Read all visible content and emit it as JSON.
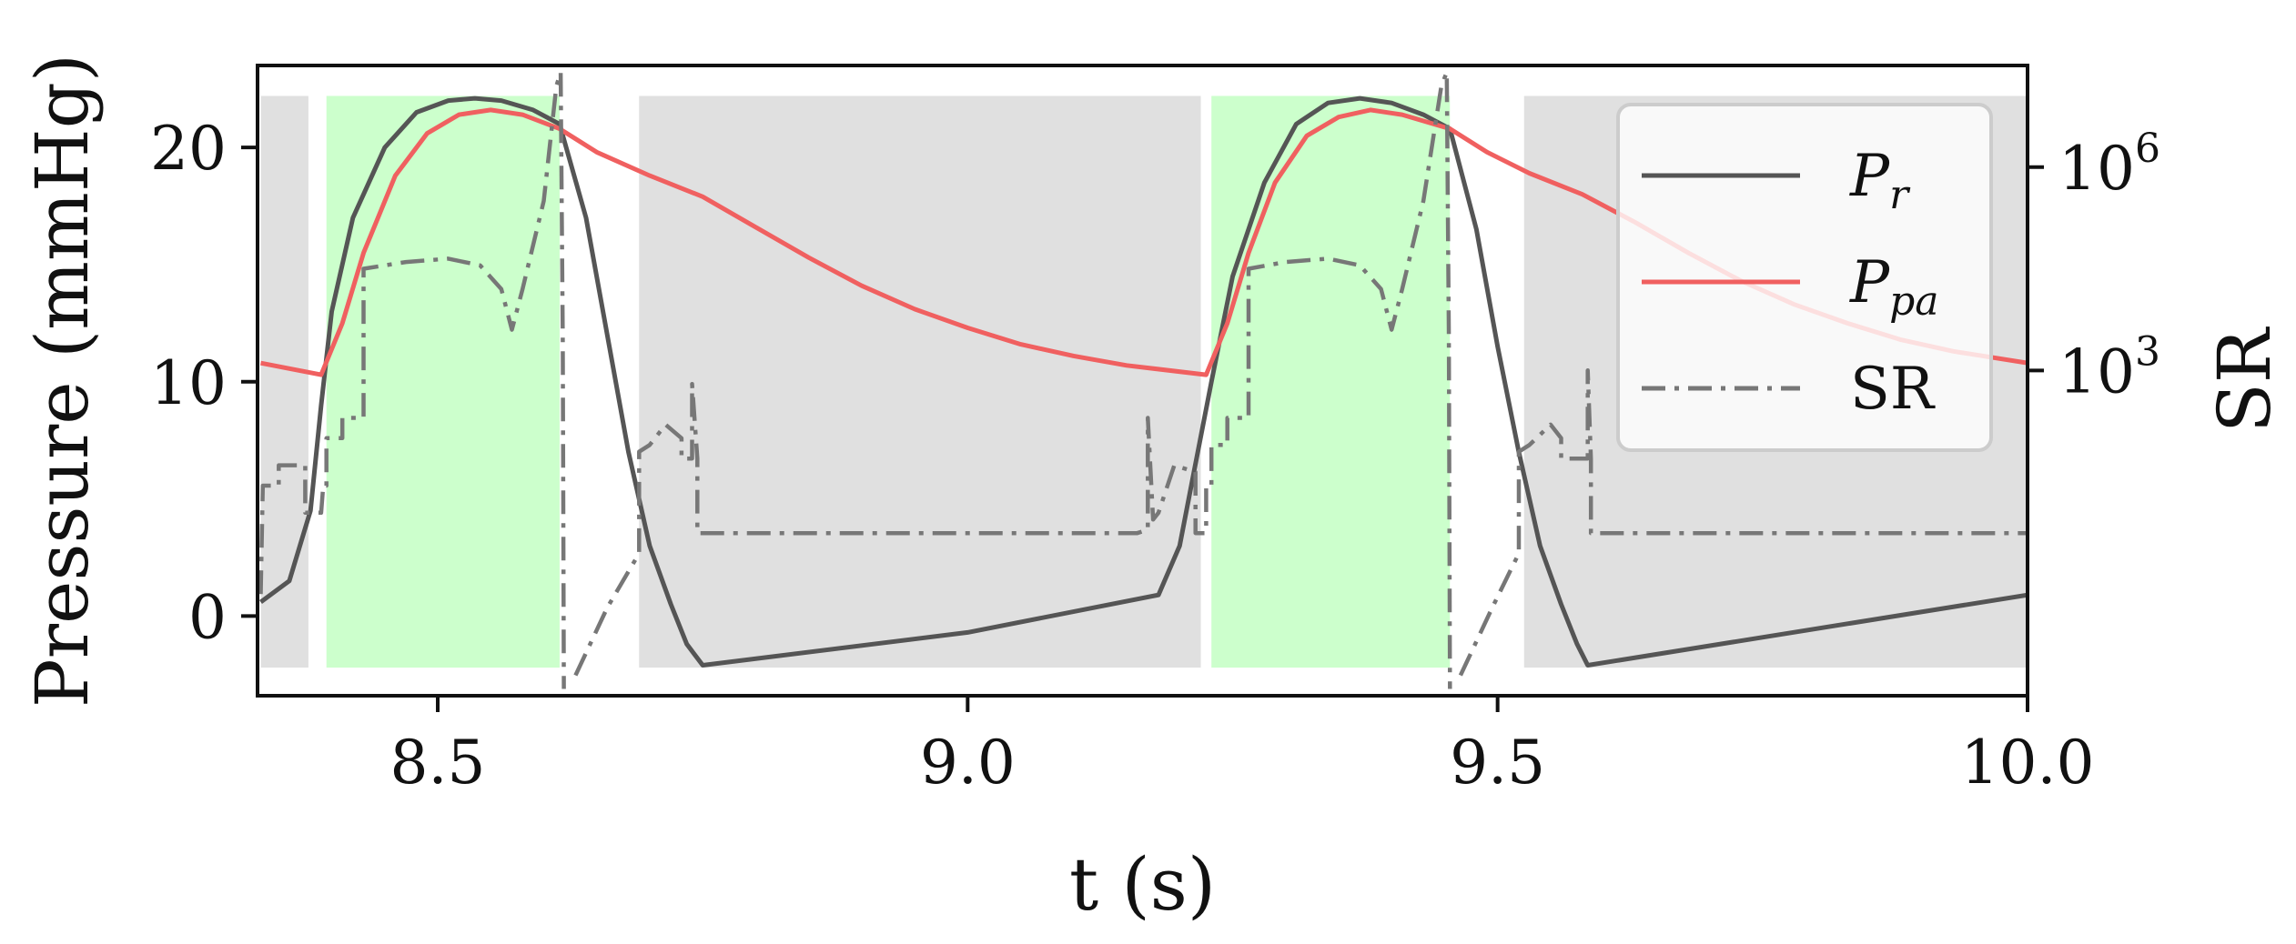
{
  "chart_data": {
    "type": "line",
    "xlabel": "t (s)",
    "ylabel": "Pressure (mmHg)",
    "y2label": "SR",
    "xlim": [
      8.33,
      10.0
    ],
    "ylim": [
      -3.4,
      23.5
    ],
    "y2scale": "log",
    "y2lim_exp": [
      -1.8,
      7.5
    ],
    "xticks": [
      {
        "v": 8.5,
        "label": "8.5"
      },
      {
        "v": 9.0,
        "label": "9.0"
      },
      {
        "v": 9.5,
        "label": "9.5"
      },
      {
        "v": 10.0,
        "label": "10.0"
      }
    ],
    "yticks": [
      {
        "v": 0,
        "label": "0"
      },
      {
        "v": 10,
        "label": "10"
      },
      {
        "v": 20,
        "label": "20"
      }
    ],
    "y2ticks": [
      {
        "e": 3,
        "base": "10",
        "exp": "3"
      },
      {
        "e": 6,
        "base": "10",
        "exp": "6"
      }
    ],
    "grey_intervals": [
      [
        8.333,
        8.378
      ],
      [
        8.69,
        9.22
      ],
      [
        9.525,
        10.0
      ]
    ],
    "green_intervals": [
      [
        8.395,
        8.615
      ],
      [
        9.23,
        9.455
      ]
    ],
    "shade_range": [
      -2.2,
      22.2
    ],
    "legend_position": "upper right",
    "series": [
      {
        "name": "P_r",
        "legend_main": "P",
        "legend_sub": "r",
        "color": "#555555",
        "style": "solid",
        "axis": "left",
        "points": [
          [
            8.333,
            0.6
          ],
          [
            8.36,
            1.5
          ],
          [
            8.38,
            4.5
          ],
          [
            8.39,
            9.0
          ],
          [
            8.4,
            13.0
          ],
          [
            8.42,
            17.0
          ],
          [
            8.45,
            20.0
          ],
          [
            8.48,
            21.5
          ],
          [
            8.51,
            22.0
          ],
          [
            8.535,
            22.1
          ],
          [
            8.56,
            22.0
          ],
          [
            8.59,
            21.6
          ],
          [
            8.615,
            21.0
          ],
          [
            8.64,
            17.0
          ],
          [
            8.66,
            12.0
          ],
          [
            8.68,
            7.0
          ],
          [
            8.7,
            3.0
          ],
          [
            8.72,
            0.5
          ],
          [
            8.735,
            -1.2
          ],
          [
            8.75,
            -2.1
          ],
          [
            9.0,
            -0.7
          ],
          [
            9.18,
            0.9
          ],
          [
            9.2,
            3.0
          ],
          [
            9.215,
            6.5
          ],
          [
            9.23,
            10.0
          ],
          [
            9.25,
            14.5
          ],
          [
            9.28,
            18.5
          ],
          [
            9.31,
            21.0
          ],
          [
            9.34,
            21.9
          ],
          [
            9.37,
            22.1
          ],
          [
            9.4,
            21.9
          ],
          [
            9.43,
            21.4
          ],
          [
            9.455,
            20.8
          ],
          [
            9.48,
            16.5
          ],
          [
            9.5,
            11.5
          ],
          [
            9.52,
            7.0
          ],
          [
            9.54,
            3.0
          ],
          [
            9.56,
            0.5
          ],
          [
            9.575,
            -1.2
          ],
          [
            9.585,
            -2.1
          ],
          [
            10.0,
            0.9
          ]
        ]
      },
      {
        "name": "P_pa",
        "legend_main": "P",
        "legend_sub": "pa",
        "color": "#f06060",
        "style": "solid",
        "axis": "left",
        "points": [
          [
            8.333,
            10.8
          ],
          [
            8.39,
            10.3
          ],
          [
            8.41,
            12.5
          ],
          [
            8.43,
            15.5
          ],
          [
            8.46,
            18.8
          ],
          [
            8.49,
            20.6
          ],
          [
            8.52,
            21.4
          ],
          [
            8.55,
            21.6
          ],
          [
            8.58,
            21.4
          ],
          [
            8.615,
            20.8
          ],
          [
            8.65,
            19.8
          ],
          [
            8.7,
            18.8
          ],
          [
            8.75,
            17.9
          ],
          [
            8.8,
            16.6
          ],
          [
            8.85,
            15.3
          ],
          [
            8.9,
            14.1
          ],
          [
            8.95,
            13.1
          ],
          [
            9.0,
            12.3
          ],
          [
            9.05,
            11.6
          ],
          [
            9.1,
            11.1
          ],
          [
            9.15,
            10.7
          ],
          [
            9.225,
            10.3
          ],
          [
            9.245,
            12.5
          ],
          [
            9.265,
            15.5
          ],
          [
            9.29,
            18.5
          ],
          [
            9.32,
            20.5
          ],
          [
            9.35,
            21.3
          ],
          [
            9.38,
            21.6
          ],
          [
            9.41,
            21.4
          ],
          [
            9.455,
            20.8
          ],
          [
            9.49,
            19.8
          ],
          [
            9.53,
            18.9
          ],
          [
            9.58,
            18.0
          ],
          [
            9.63,
            16.8
          ],
          [
            9.68,
            15.5
          ],
          [
            9.73,
            14.3
          ],
          [
            9.78,
            13.3
          ],
          [
            9.83,
            12.5
          ],
          [
            9.88,
            11.8
          ],
          [
            9.93,
            11.3
          ],
          [
            10.0,
            10.8
          ]
        ]
      },
      {
        "name": "SR",
        "legend_main": "SR",
        "legend_sub": "",
        "color": "#777777",
        "style": "dashdot",
        "axis": "right",
        "points": [
          [
            8.333,
            -0.3
          ],
          [
            8.335,
            1.3
          ],
          [
            8.35,
            1.3
          ],
          [
            8.35,
            1.6
          ],
          [
            8.375,
            1.6
          ],
          [
            8.375,
            0.9
          ],
          [
            8.39,
            0.9
          ],
          [
            8.392,
            1.3
          ],
          [
            8.395,
            1.3
          ],
          [
            8.395,
            2.0
          ],
          [
            8.41,
            2.0
          ],
          [
            8.41,
            2.3
          ],
          [
            8.43,
            2.3
          ],
          [
            8.43,
            4.5
          ],
          [
            8.47,
            4.6
          ],
          [
            8.51,
            4.65
          ],
          [
            8.54,
            4.55
          ],
          [
            8.56,
            4.2
          ],
          [
            8.57,
            3.6
          ],
          [
            8.58,
            4.2
          ],
          [
            8.6,
            5.5
          ],
          [
            8.612,
            7.2
          ],
          [
            8.616,
            7.4
          ],
          [
            8.618,
            3.5
          ],
          [
            8.619,
            -1.7
          ],
          null,
          [
            8.63,
            -1.5
          ],
          [
            8.66,
            -0.5
          ],
          [
            8.69,
            0.3
          ],
          [
            8.69,
            1.8
          ],
          [
            8.7,
            1.9
          ],
          [
            8.715,
            2.2
          ],
          [
            8.73,
            2.0
          ],
          [
            8.73,
            1.7
          ],
          [
            8.74,
            1.7
          ],
          [
            8.74,
            2.8
          ],
          [
            8.745,
            1.7
          ],
          [
            8.745,
            0.6
          ],
          [
            9.16,
            0.6
          ],
          [
            9.17,
            0.65
          ],
          [
            9.17,
            2.3
          ],
          [
            9.175,
            0.8
          ],
          [
            9.18,
            0.9
          ],
          [
            9.195,
            1.6
          ],
          [
            9.215,
            1.5
          ],
          [
            9.215,
            0.6
          ],
          [
            9.225,
            0.6
          ],
          [
            9.225,
            1.3
          ],
          [
            9.23,
            1.3
          ],
          [
            9.23,
            1.9
          ],
          [
            9.245,
            1.9
          ],
          [
            9.245,
            2.3
          ],
          [
            9.265,
            2.3
          ],
          [
            9.265,
            4.5
          ],
          [
            9.3,
            4.6
          ],
          [
            9.34,
            4.65
          ],
          [
            9.37,
            4.55
          ],
          [
            9.39,
            4.2
          ],
          [
            9.4,
            3.6
          ],
          [
            9.41,
            4.2
          ],
          [
            9.43,
            5.5
          ],
          [
            9.447,
            7.2
          ],
          [
            9.452,
            7.4
          ],
          [
            9.454,
            3.5
          ],
          [
            9.455,
            -1.7
          ],
          null,
          [
            9.465,
            -1.5
          ],
          [
            9.495,
            -0.5
          ],
          [
            9.52,
            0.3
          ],
          [
            9.52,
            1.8
          ],
          [
            9.53,
            1.9
          ],
          [
            9.55,
            2.2
          ],
          [
            9.56,
            2.0
          ],
          [
            9.56,
            1.7
          ],
          [
            9.585,
            1.7
          ],
          [
            9.585,
            3.0
          ],
          [
            9.588,
            1.7
          ],
          [
            9.588,
            0.6
          ],
          [
            10.0,
            0.6
          ]
        ]
      }
    ]
  }
}
